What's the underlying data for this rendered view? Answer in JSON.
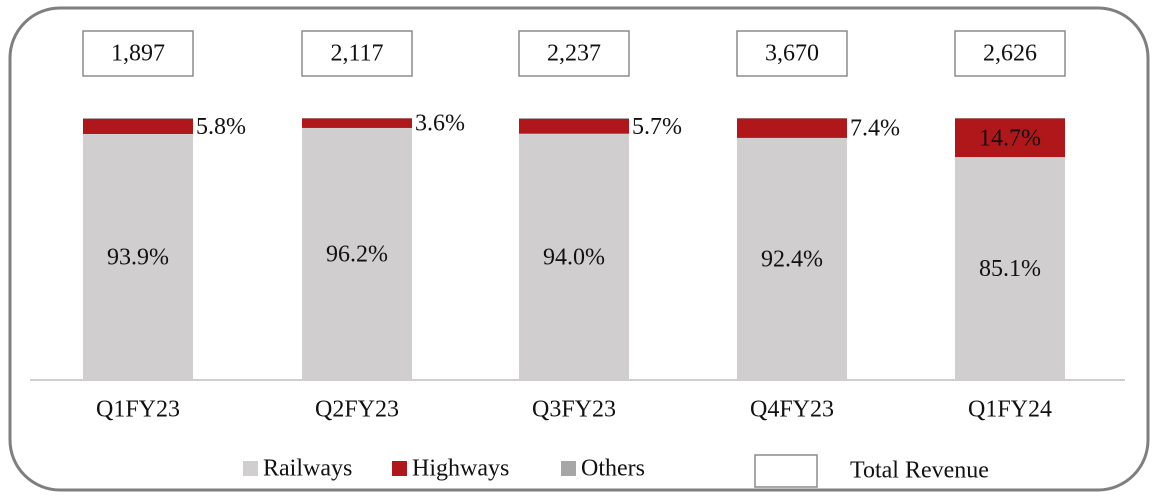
{
  "chart_data": {
    "type": "stacked_bar",
    "categories": [
      "Q1FY23",
      "Q2FY23",
      "Q3FY23",
      "Q4FY23",
      "Q1FY24"
    ],
    "ylim": [
      0,
      100
    ],
    "series": [
      {
        "name": "Railways",
        "color": "#d0cece",
        "values": [
          93.9,
          96.2,
          94.0,
          92.4,
          85.1
        ],
        "value_labels": [
          "93.9%",
          "96.2%",
          "94.0%",
          "92.4%",
          "85.1%"
        ]
      },
      {
        "name": "Highways",
        "color": "#b0171a",
        "values": [
          5.8,
          3.6,
          5.7,
          7.4,
          14.7
        ],
        "value_labels": [
          "5.8%",
          "3.6%",
          "5.7%",
          "7.4%",
          "14.7%"
        ]
      },
      {
        "name": "Others",
        "color": "#a6a6a6",
        "values": [
          0.3,
          0.2,
          0.3,
          0.2,
          0.2
        ]
      }
    ],
    "totals": {
      "name": "Total Revenue",
      "values": [
        1897,
        2117,
        2237,
        3670,
        2626
      ],
      "value_labels": [
        "1,897",
        "2,117",
        "2,237",
        "3,670",
        "2,626"
      ]
    }
  }
}
